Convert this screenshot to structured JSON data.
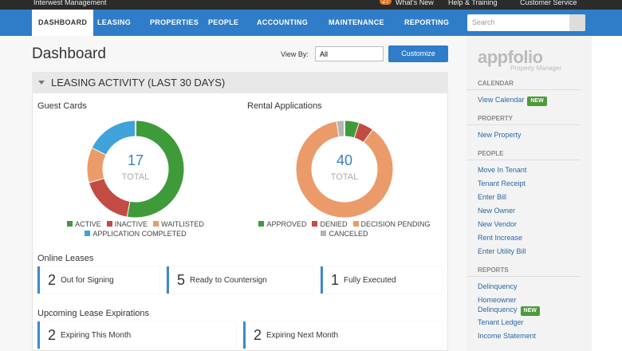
{
  "topbar": {
    "company": "Interwest Management",
    "badge": "27",
    "links": [
      "What's New",
      "Help & Training",
      "Customer Service"
    ]
  },
  "nav": {
    "items": [
      "DASHBOARD",
      "LEASING",
      "PROPERTIES",
      "PEOPLE",
      "ACCOUNTING",
      "MAINTENANCE",
      "REPORTING"
    ],
    "search_placeholder": "Search"
  },
  "header": {
    "title": "Dashboard",
    "view_by_label": "View By:",
    "view_by_value": "All",
    "button": "Customize"
  },
  "panel": {
    "title": "LEASING ACTIVITY (LAST 30 DAYS)"
  },
  "donuts": [
    {
      "title": "Guest Cards",
      "total": 17,
      "total_label": "TOTAL",
      "segments": [
        {
          "name": "ACTIVE",
          "color": "#3f9a3a",
          "value": 9
        },
        {
          "name": "INACTIVE",
          "color": "#c24b43",
          "value": 3
        },
        {
          "name": "WAITLISTED",
          "color": "#eb9b6a",
          "value": 2
        },
        {
          "name": "APPLICATION COMPLETED",
          "color": "#3fa3da",
          "value": 3
        }
      ]
    },
    {
      "title": "Rental Applications",
      "total": 40,
      "total_label": "TOTAL",
      "segments": [
        {
          "name": "APPROVED",
          "color": "#3f9a3a",
          "value": 2
        },
        {
          "name": "DENIED",
          "color": "#c24b43",
          "value": 2
        },
        {
          "name": "DECISION PENDING",
          "color": "#eb9b6a",
          "value": 35
        },
        {
          "name": "CANCELED",
          "color": "#b5b5b5",
          "value": 1
        }
      ]
    }
  ],
  "online_leases": {
    "title": "Online Leases",
    "cards": [
      {
        "count": 2,
        "label": "Out for Signing"
      },
      {
        "count": 5,
        "label": "Ready to Countersign"
      },
      {
        "count": 1,
        "label": "Fully Executed"
      }
    ]
  },
  "expirations": {
    "title": "Upcoming Lease Expirations",
    "cards": [
      {
        "count": 2,
        "label": "Expiring This Month"
      },
      {
        "count": 2,
        "label": "Expiring Next Month"
      }
    ]
  },
  "sidebar": {
    "logo": "appfolio",
    "logo_sub": "Property Manager",
    "sections": [
      {
        "title": "CALENDAR",
        "links": [
          {
            "label": "View Calendar",
            "badge": "NEW"
          }
        ]
      },
      {
        "title": "PROPERTY",
        "links": [
          {
            "label": "New Property"
          }
        ]
      },
      {
        "title": "PEOPLE",
        "links": [
          {
            "label": "Move In Tenant"
          },
          {
            "label": "Tenant Receipt"
          },
          {
            "label": "Enter Bill"
          },
          {
            "label": "New Owner"
          },
          {
            "label": "New Vendor"
          },
          {
            "label": "Rent Increase"
          },
          {
            "label": "Enter Utility Bill"
          }
        ]
      },
      {
        "title": "REPORTS",
        "links": [
          {
            "label": "Delinquency"
          },
          {
            "label": "Homeowner Delinquency",
            "badge": "NEW"
          },
          {
            "label": "Tenant Ledger"
          },
          {
            "label": "Income Statement"
          }
        ]
      }
    ]
  }
}
